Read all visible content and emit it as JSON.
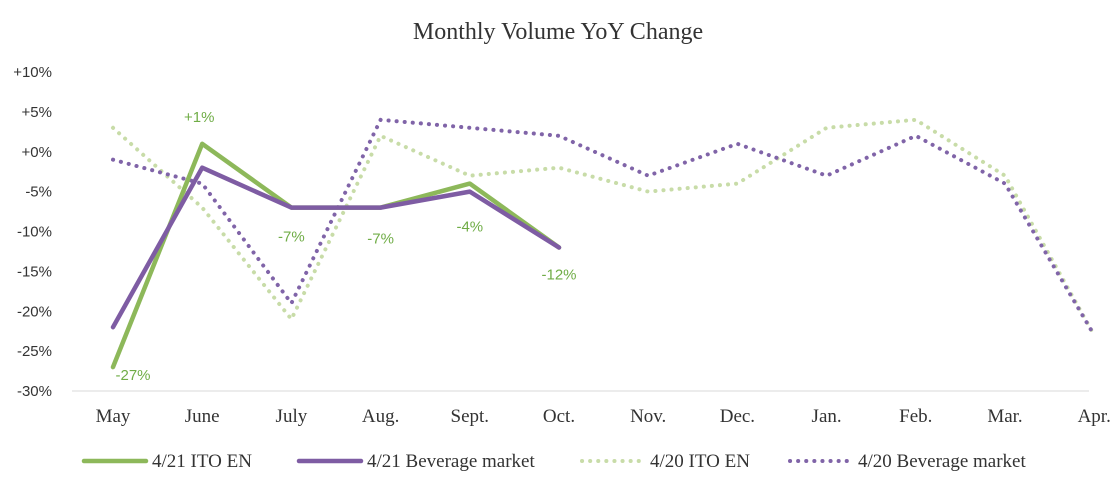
{
  "chart_data": {
    "type": "line",
    "title": "Monthly Volume YoY Change",
    "xlabel": "",
    "ylabel": "",
    "ylim": [
      -30,
      10
    ],
    "ytick_values": [
      10,
      5,
      0,
      -5,
      -10,
      -15,
      -20,
      -25,
      -30
    ],
    "ytick_labels": [
      "+10%",
      "+5%",
      "+0%",
      "-5%",
      "-10%",
      "-15%",
      "-20%",
      "-25%",
      "-30%"
    ],
    "categories": [
      "May",
      "June",
      "July",
      "Aug.",
      "Sept.",
      "Oct.",
      "Nov.",
      "Dec.",
      "Jan.",
      "Feb.",
      "Mar.",
      "Apr."
    ],
    "legend_position": "bottom",
    "series": [
      {
        "name": "4/21 ITO EN",
        "color": "#8DB85A",
        "style": "solid",
        "values": [
          -27,
          1,
          -7,
          -7,
          -4,
          -12,
          null,
          null,
          null,
          null,
          null,
          null
        ],
        "labels": [
          "-27%",
          "+1%",
          "-7%",
          "-7%",
          "-4%",
          "-12%",
          null,
          null,
          null,
          null,
          null,
          null
        ]
      },
      {
        "name": "4/21 Beverage market",
        "color": "#7E5CA3",
        "style": "solid",
        "values": [
          -22,
          -2,
          -7,
          -7,
          -5,
          -12,
          null,
          null,
          null,
          null,
          null,
          null
        ]
      },
      {
        "name": "4/20 ITO EN",
        "color": "#C8DCA8",
        "style": "dotted",
        "values": [
          3,
          -7,
          -21,
          2,
          -3,
          -2,
          -5,
          -4,
          3,
          4,
          -3,
          -23
        ]
      },
      {
        "name": "4/20 Beverage market",
        "color": "#8064A8",
        "style": "dotted",
        "values": [
          -1,
          -4,
          -19,
          4,
          3,
          2,
          -3,
          1,
          -3,
          2,
          -4,
          -23
        ]
      }
    ]
  }
}
